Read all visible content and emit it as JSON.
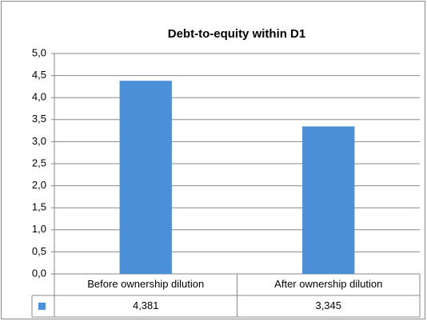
{
  "chart_data": {
    "type": "bar",
    "title": "Debt-to-equity within D1",
    "categories": [
      "Before ownership dilution",
      "After ownership dilution"
    ],
    "values": [
      4.381,
      3.345
    ],
    "value_labels": [
      "4,381",
      "3,345"
    ],
    "color": "#4a8fd8",
    "ylim": [
      0,
      5
    ],
    "yticks": [
      {
        "value": 0,
        "label": "0,0"
      },
      {
        "value": 0.5,
        "label": "0,5"
      },
      {
        "value": 1,
        "label": "1,0"
      },
      {
        "value": 1.5,
        "label": "1,5"
      },
      {
        "value": 2,
        "label": "2,0"
      },
      {
        "value": 2.5,
        "label": "2,5"
      },
      {
        "value": 3,
        "label": "3,0"
      },
      {
        "value": 3.5,
        "label": "3,5"
      },
      {
        "value": 4,
        "label": "4,0"
      },
      {
        "value": 4.5,
        "label": "4,5"
      },
      {
        "value": 5,
        "label": "5,0"
      }
    ],
    "grid": true
  }
}
